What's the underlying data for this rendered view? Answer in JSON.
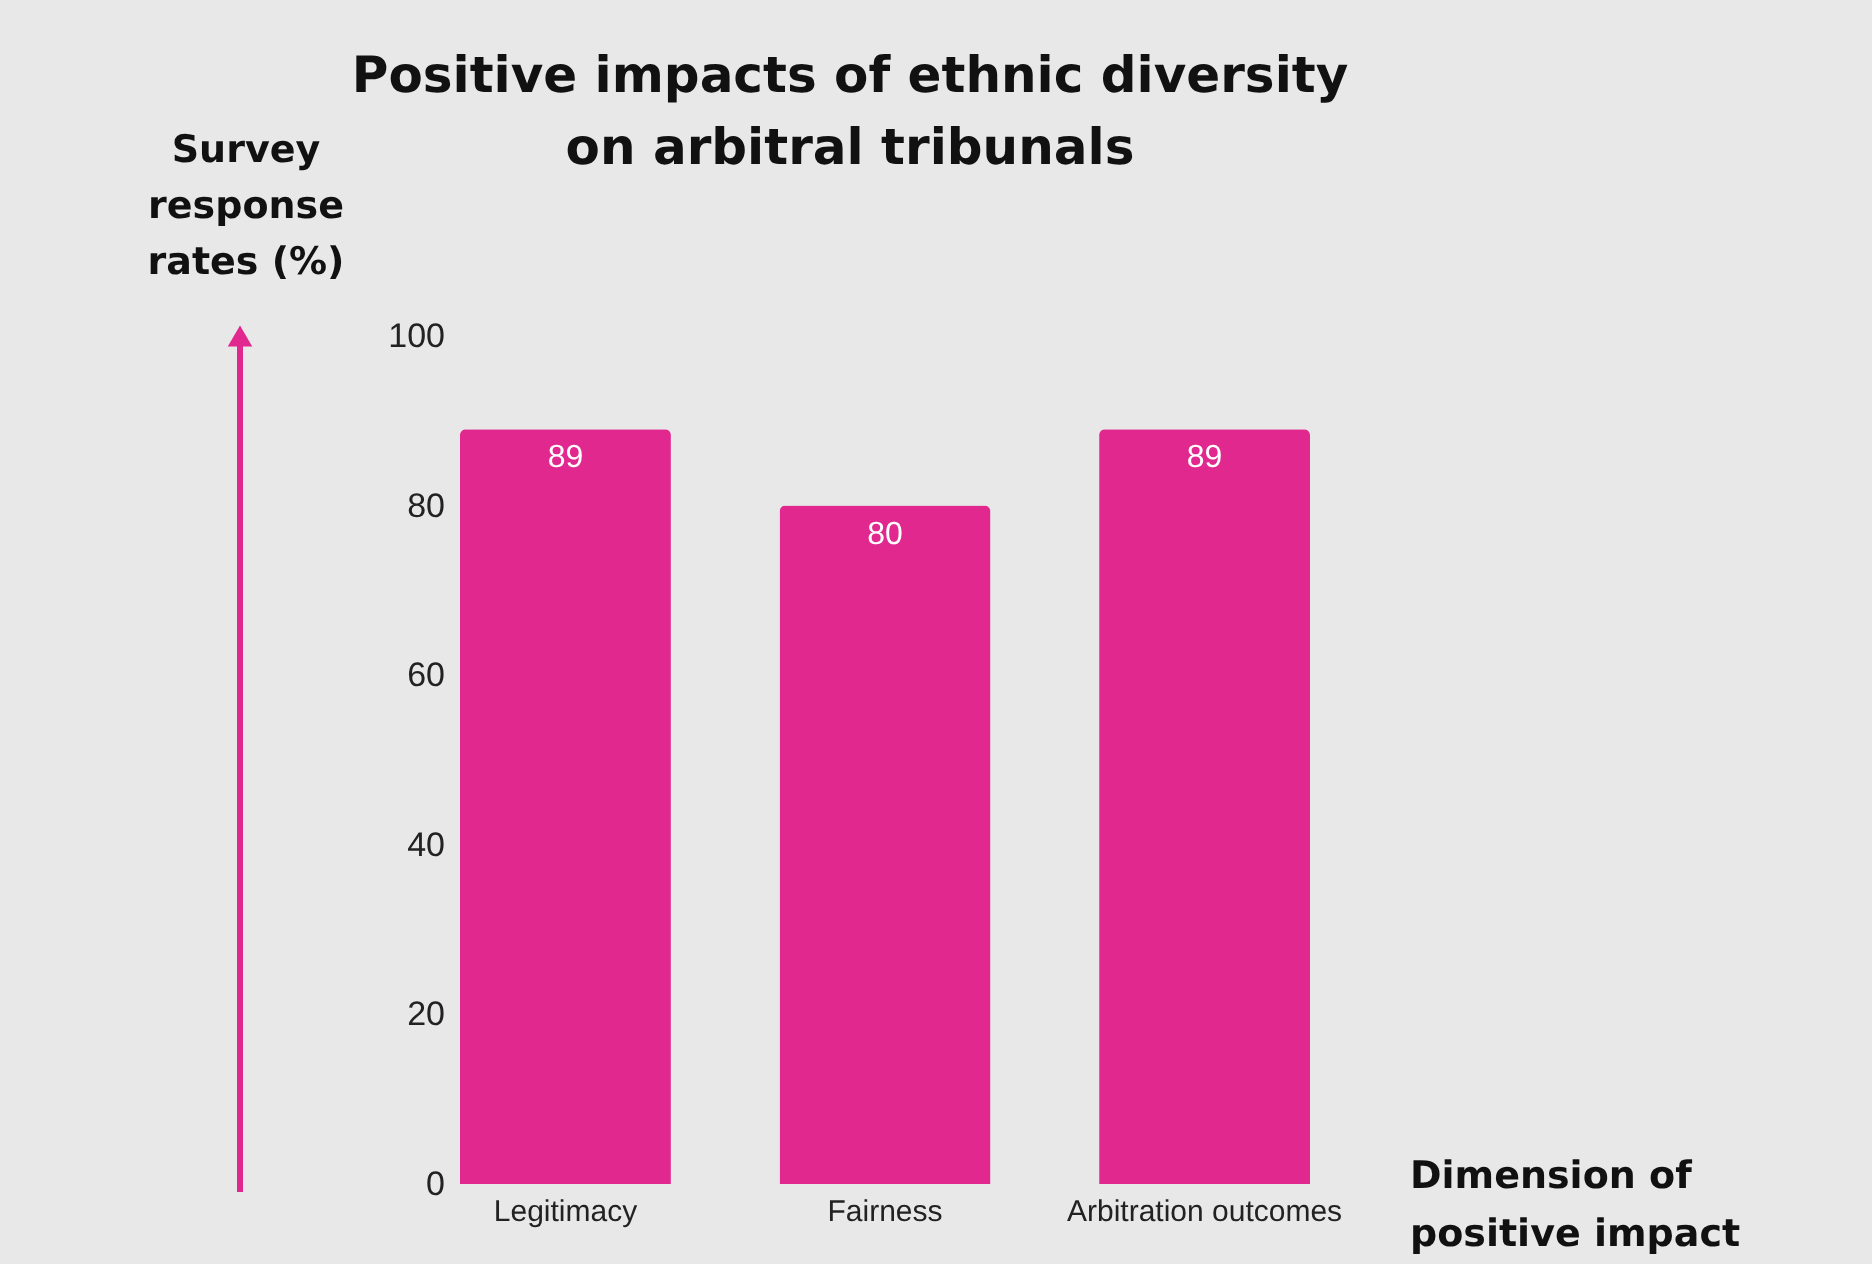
{
  "chart_data": {
    "type": "bar",
    "title": "Positive impacts of ethnic diversity on arbitral tribunals",
    "xlabel": "Dimension of positive impact",
    "ylabel": "Survey response rates (%)",
    "categories": [
      "Legitimacy",
      "Fairness",
      "Arbitration outcomes"
    ],
    "values": [
      89,
      80,
      89
    ],
    "color": "#e0288e",
    "ylim": [
      0,
      100
    ],
    "yticks": [
      0,
      20,
      40,
      60,
      80,
      100
    ],
    "grid": false,
    "data_labels": true
  }
}
